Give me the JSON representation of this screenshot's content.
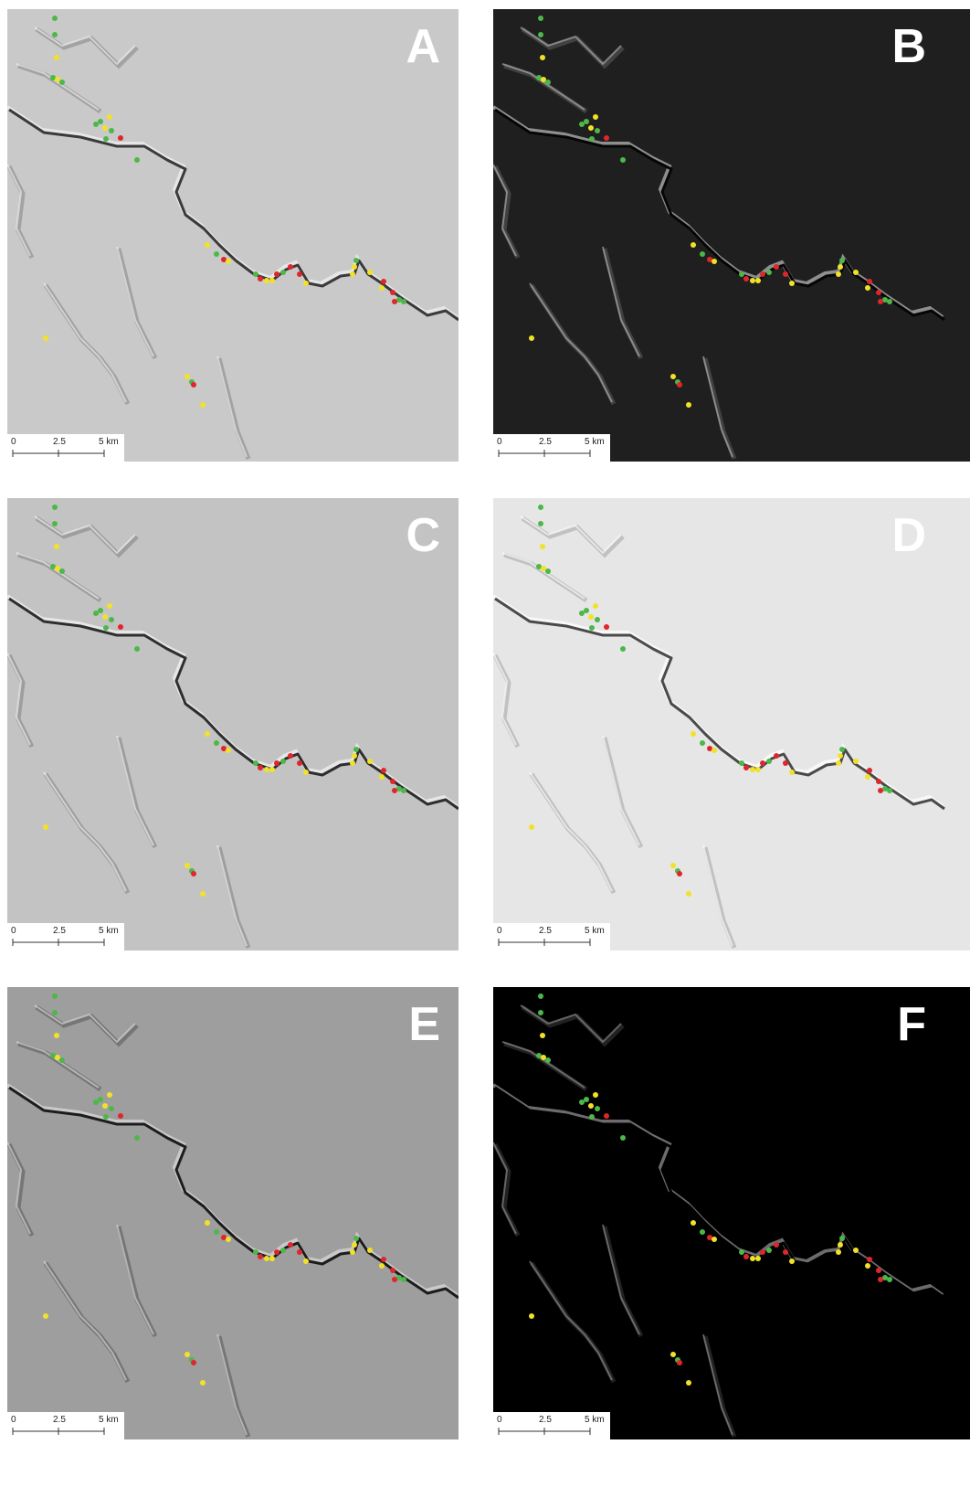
{
  "panels": [
    {
      "label": "A",
      "scale": [
        "0",
        "2.5",
        "5 km"
      ]
    },
    {
      "label": "B",
      "scale": [
        "0",
        "2.5",
        "5 km"
      ]
    },
    {
      "label": "C",
      "scale": [
        "0",
        "2.5",
        "5 km"
      ]
    },
    {
      "label": "D",
      "scale": [
        "0",
        "2.5",
        "5 km"
      ]
    },
    {
      "label": "E",
      "scale": [
        "0",
        "2.5",
        "5 km"
      ]
    },
    {
      "label": "F",
      "scale": [
        "0",
        "2.5",
        "5 km"
      ]
    }
  ]
}
